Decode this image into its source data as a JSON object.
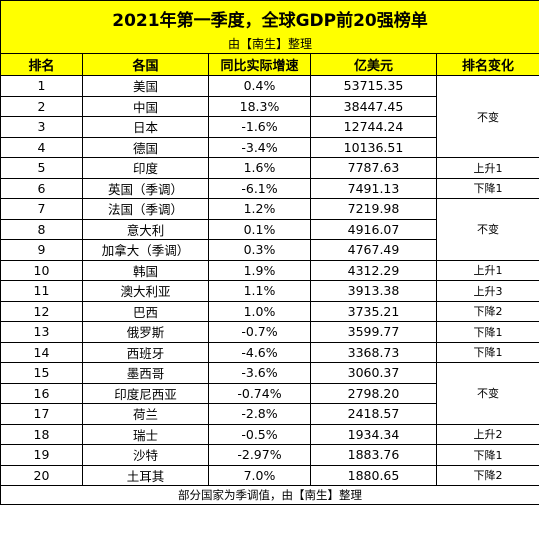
{
  "title": "2021年第一季度，全球GDP前20强榜单",
  "subtitle": "由【南生】整理",
  "headers": {
    "rank": "排名",
    "country": "各国",
    "growth": "同比实际增速",
    "gdp": "亿美元",
    "rank_change": "排名变化"
  },
  "rows": [
    {
      "rank": "1",
      "country": "美国",
      "growth": "0.4%",
      "gdp": "53715.35"
    },
    {
      "rank": "2",
      "country": "中国",
      "growth": "18.3%",
      "gdp": "38447.45"
    },
    {
      "rank": "3",
      "country": "日本",
      "growth": "-1.6%",
      "gdp": "12744.24"
    },
    {
      "rank": "4",
      "country": "德国",
      "growth": "-3.4%",
      "gdp": "10136.51"
    },
    {
      "rank": "5",
      "country": "印度",
      "growth": "1.6%",
      "gdp": "7787.63"
    },
    {
      "rank": "6",
      "country": "英国（季调）",
      "growth": "-6.1%",
      "gdp": "7491.13"
    },
    {
      "rank": "7",
      "country": "法国（季调）",
      "growth": "1.2%",
      "gdp": "7219.98"
    },
    {
      "rank": "8",
      "country": "意大利",
      "growth": "0.1%",
      "gdp": "4916.07"
    },
    {
      "rank": "9",
      "country": "加拿大（季调）",
      "growth": "0.3%",
      "gdp": "4767.49"
    },
    {
      "rank": "10",
      "country": "韩国",
      "growth": "1.9%",
      "gdp": "4312.29"
    },
    {
      "rank": "11",
      "country": "澳大利亚",
      "growth": "1.1%",
      "gdp": "3913.38"
    },
    {
      "rank": "12",
      "country": "巴西",
      "growth": "1.0%",
      "gdp": "3735.21"
    },
    {
      "rank": "13",
      "country": "俄罗斯",
      "growth": "-0.7%",
      "gdp": "3599.77"
    },
    {
      "rank": "14",
      "country": "西班牙",
      "growth": "-4.6%",
      "gdp": "3368.73"
    },
    {
      "rank": "15",
      "country": "墨西哥",
      "growth": "-3.6%",
      "gdp": "3060.37"
    },
    {
      "rank": "16",
      "country": "印度尼西亚",
      "growth": "-0.74%",
      "gdp": "2798.20"
    },
    {
      "rank": "17",
      "country": "荷兰",
      "growth": "-2.8%",
      "gdp": "2418.57"
    },
    {
      "rank": "18",
      "country": "瑞士",
      "growth": "-0.5%",
      "gdp": "1934.34"
    },
    {
      "rank": "19",
      "country": "沙特",
      "growth": "-2.97%",
      "gdp": "1883.76"
    },
    {
      "rank": "20",
      "country": "土耳其",
      "growth": "7.0%",
      "gdp": "1880.65"
    }
  ],
  "rank_changes": {
    "r1_4": "不变",
    "r5": "上升1",
    "r6": "下降1",
    "r7_9": "不变",
    "r10": "上升1",
    "r11": "上升3",
    "r12": "下降2",
    "r13": "下降1",
    "r14": "下降1",
    "r15_17": "不变",
    "r18": "上升2",
    "r19": "下降1",
    "r20": "下降2"
  },
  "footer": "部分国家为季调值，由【南生】整理",
  "colors": {
    "header_background": "#ffff00",
    "border": "#000000"
  }
}
